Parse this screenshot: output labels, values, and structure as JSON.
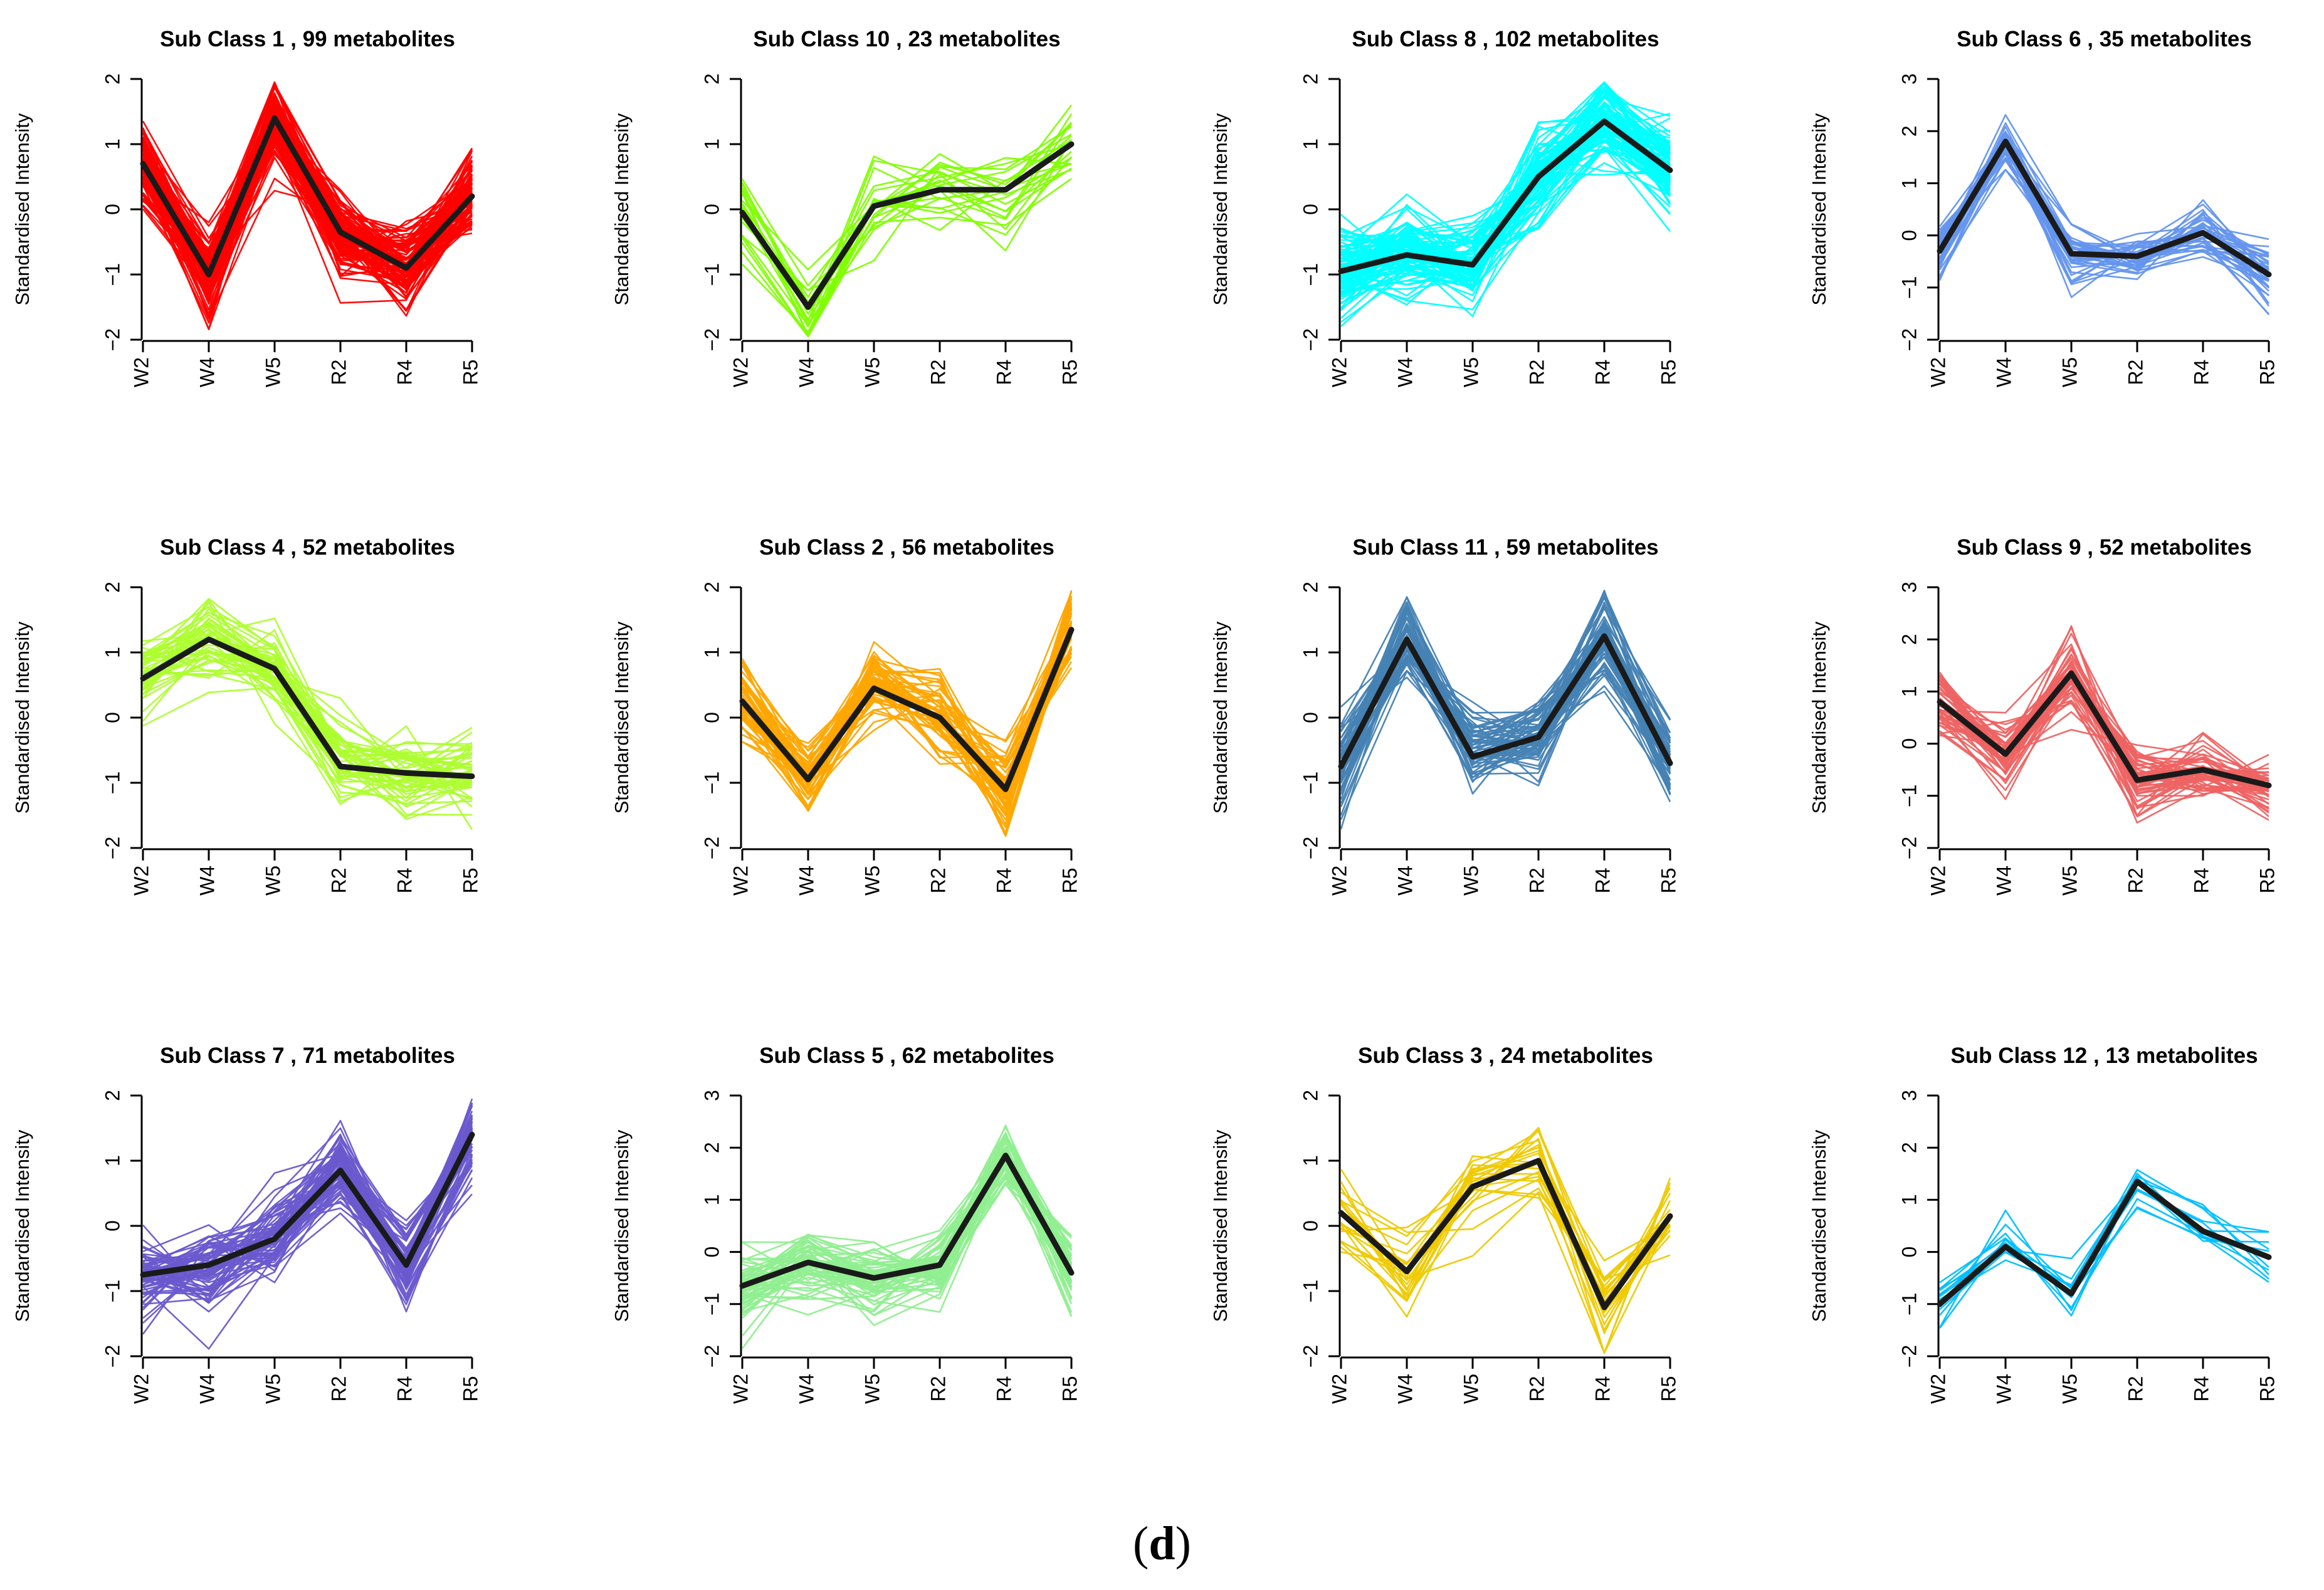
{
  "figure_label": "d",
  "chart_data": [
    {
      "type": "line",
      "title": "Sub Class  1  , 99 metabolites",
      "ylabel": "Standardised Intensity",
      "categories": [
        "W2",
        "W4",
        "W5",
        "R2",
        "R4",
        "R5"
      ],
      "ylim": [
        -2,
        2
      ],
      "yticks": [
        -2,
        -1,
        0,
        1,
        2
      ],
      "color": "#ff0000",
      "n_profiles": 99,
      "mean": [
        0.7,
        -1.0,
        1.4,
        -0.35,
        -0.9,
        0.2
      ]
    },
    {
      "type": "line",
      "title": "Sub Class  4  , 52 metabolites",
      "ylabel": "Standardised Intensity",
      "categories": [
        "W2",
        "W4",
        "W5",
        "R2",
        "R4",
        "R5"
      ],
      "ylim": [
        -2,
        2
      ],
      "yticks": [
        -2,
        -1,
        0,
        1,
        2
      ],
      "color": "#adff2f",
      "n_profiles": 52,
      "mean": [
        0.6,
        1.2,
        0.75,
        -0.75,
        -0.85,
        -0.9
      ]
    },
    {
      "type": "line",
      "title": "Sub Class  7  , 71 metabolites",
      "ylabel": "Standardised Intensity",
      "categories": [
        "W2",
        "W4",
        "W5",
        "R2",
        "R4",
        "R5"
      ],
      "ylim": [
        -2,
        2
      ],
      "yticks": [
        -2,
        -1,
        0,
        1,
        2
      ],
      "color": "#6a5acd",
      "n_profiles": 71,
      "mean": [
        -0.75,
        -0.6,
        -0.2,
        0.85,
        -0.6,
        1.4
      ]
    },
    {
      "type": "line",
      "title": "Sub Class  10  , 23 metabolites",
      "ylabel": "Standardised Intensity",
      "categories": [
        "W2",
        "W4",
        "W5",
        "R2",
        "R4",
        "R5"
      ],
      "ylim": [
        -2,
        2
      ],
      "yticks": [
        -2,
        -1,
        0,
        1,
        2
      ],
      "color": "#7fff00",
      "n_profiles": 23,
      "mean": [
        -0.05,
        -1.5,
        0.05,
        0.3,
        0.3,
        1.0
      ]
    },
    {
      "type": "line",
      "title": "Sub Class  2  , 56 metabolites",
      "ylabel": "Standardised Intensity",
      "categories": [
        "W2",
        "W4",
        "W5",
        "R2",
        "R4",
        "R5"
      ],
      "ylim": [
        -2,
        2
      ],
      "yticks": [
        -2,
        -1,
        0,
        1,
        2
      ],
      "color": "#ffa500",
      "n_profiles": 56,
      "mean": [
        0.25,
        -0.95,
        0.45,
        0.0,
        -1.1,
        1.35
      ]
    },
    {
      "type": "line",
      "title": "Sub Class  5  , 62 metabolites",
      "ylabel": "Standardised Intensity",
      "categories": [
        "W2",
        "W4",
        "W5",
        "R2",
        "R4",
        "R5"
      ],
      "ylim": [
        -2,
        3
      ],
      "yticks": [
        -2,
        -1,
        0,
        1,
        2,
        3
      ],
      "color": "#90ee90",
      "n_profiles": 62,
      "mean": [
        -0.65,
        -0.2,
        -0.5,
        -0.25,
        1.85,
        -0.4
      ]
    },
    {
      "type": "line",
      "title": "Sub Class  8  , 102 metabolites",
      "ylabel": "Standardised Intensity",
      "categories": [
        "W2",
        "W4",
        "W5",
        "R2",
        "R4",
        "R5"
      ],
      "ylim": [
        -2,
        2
      ],
      "yticks": [
        -2,
        -1,
        0,
        1,
        2
      ],
      "color": "#00ffff",
      "n_profiles": 102,
      "mean": [
        -0.95,
        -0.7,
        -0.85,
        0.5,
        1.35,
        0.6
      ]
    },
    {
      "type": "line",
      "title": "Sub Class  11  , 59 metabolites",
      "ylabel": "Standardised Intensity",
      "categories": [
        "W2",
        "W4",
        "W5",
        "R2",
        "R4",
        "R5"
      ],
      "ylim": [
        -2,
        2
      ],
      "yticks": [
        -2,
        -1,
        0,
        1,
        2
      ],
      "color": "#4682b4",
      "n_profiles": 59,
      "mean": [
        -0.75,
        1.2,
        -0.6,
        -0.3,
        1.25,
        -0.7
      ]
    },
    {
      "type": "line",
      "title": "Sub Class  3  , 24 metabolites",
      "ylabel": "Standardised Intensity",
      "categories": [
        "W2",
        "W4",
        "W5",
        "R2",
        "R4",
        "R5"
      ],
      "ylim": [
        -2,
        2
      ],
      "yticks": [
        -2,
        -1,
        0,
        1,
        2
      ],
      "color": "#eec900",
      "n_profiles": 24,
      "mean": [
        0.2,
        -0.7,
        0.6,
        1.0,
        -1.25,
        0.15
      ]
    },
    {
      "type": "line",
      "title": "Sub Class  6  , 35 metabolites",
      "ylabel": "Standardised Intensity",
      "categories": [
        "W2",
        "W4",
        "W5",
        "R2",
        "R4",
        "R5"
      ],
      "ylim": [
        -2,
        3
      ],
      "yticks": [
        -2,
        -1,
        0,
        1,
        2,
        3
      ],
      "color": "#6495ed",
      "n_profiles": 35,
      "mean": [
        -0.3,
        1.8,
        -0.35,
        -0.4,
        0.05,
        -0.75
      ]
    },
    {
      "type": "line",
      "title": "Sub Class  9  , 52 metabolites",
      "ylabel": "Standardised Intensity",
      "categories": [
        "W2",
        "W4",
        "W5",
        "R2",
        "R4",
        "R5"
      ],
      "ylim": [
        -2,
        3
      ],
      "yticks": [
        -2,
        -1,
        0,
        1,
        2,
        3
      ],
      "color": "#ee6363",
      "n_profiles": 52,
      "mean": [
        0.8,
        -0.2,
        1.35,
        -0.7,
        -0.5,
        -0.8
      ]
    },
    {
      "type": "line",
      "title": "Sub Class  12  , 13 metabolites",
      "ylabel": "Standardised Intensity",
      "categories": [
        "W2",
        "W4",
        "W5",
        "R2",
        "R4",
        "R5"
      ],
      "ylim": [
        -2,
        3
      ],
      "yticks": [
        -2,
        -1,
        0,
        1,
        2,
        3
      ],
      "color": "#00bfff",
      "n_profiles": 13,
      "mean": [
        -1.0,
        0.1,
        -0.8,
        1.35,
        0.4,
        -0.1
      ]
    }
  ]
}
